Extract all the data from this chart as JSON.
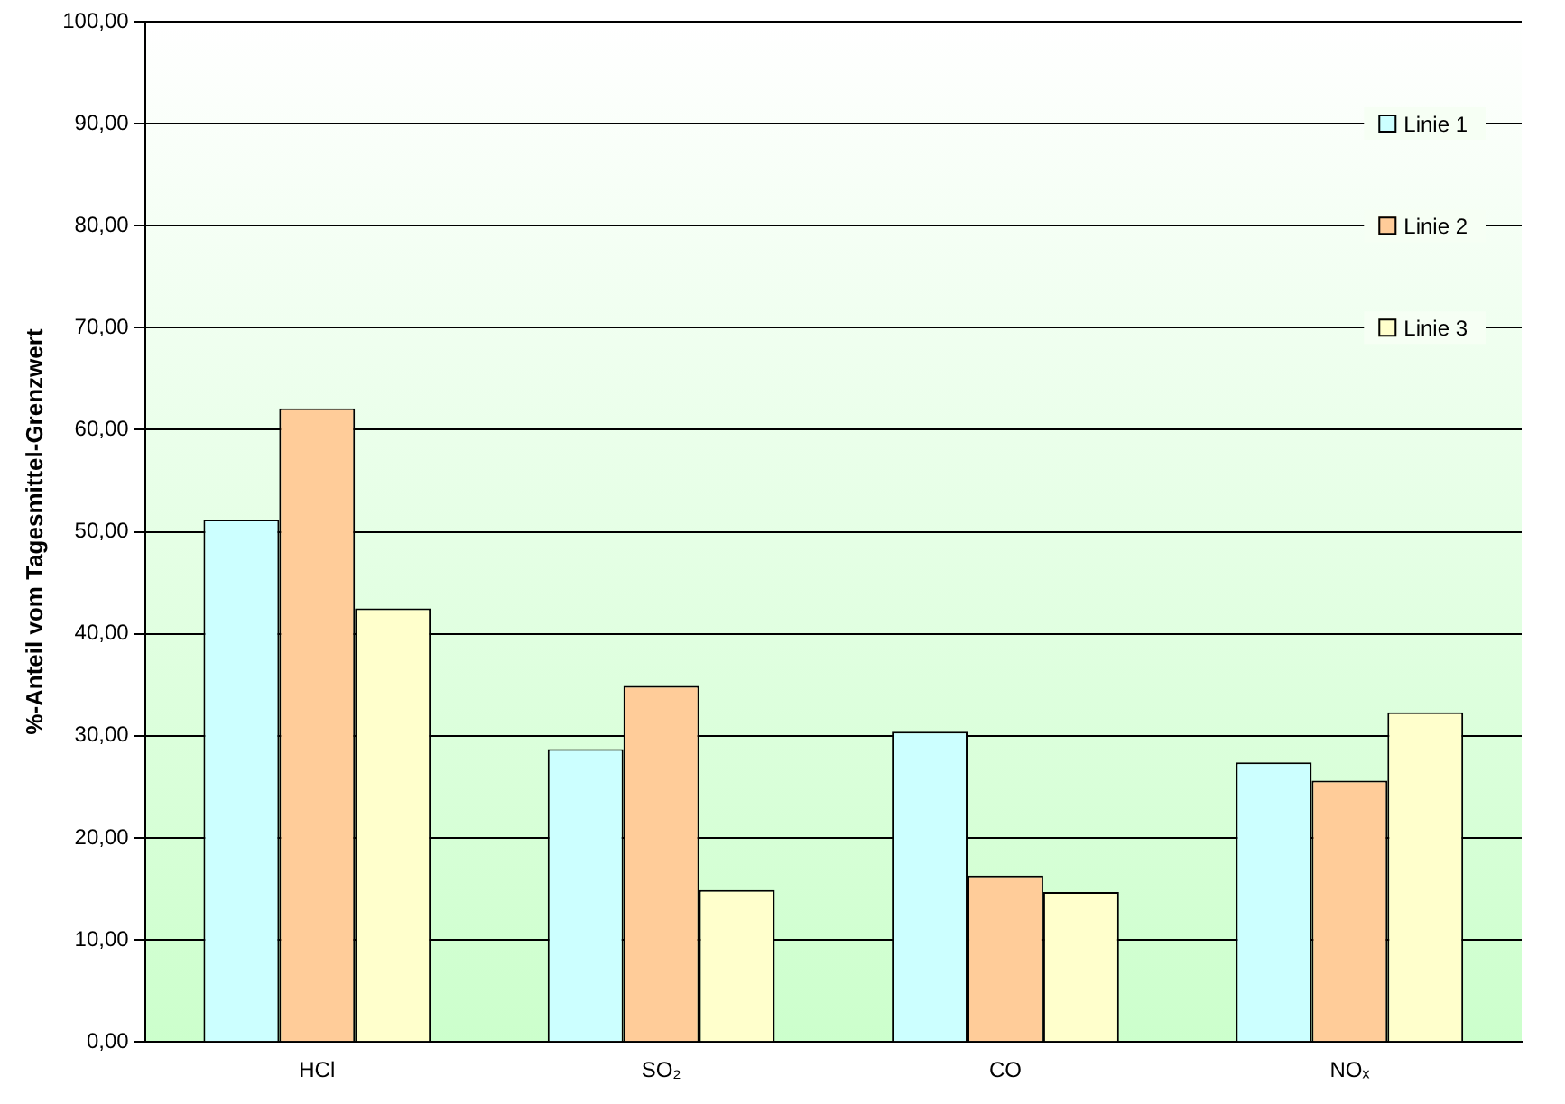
{
  "chart_data": {
    "type": "bar",
    "ylabel": "%-Anteil vom Tagesmittel-Grenzwert",
    "categories": [
      "HCl",
      "SO₂",
      "CO",
      "NOₓ"
    ],
    "series": [
      {
        "name": "Linie 1",
        "color": "#ccffff",
        "values": [
          51.2,
          28.7,
          30.4,
          27.4
        ]
      },
      {
        "name": "Linie 2",
        "color": "#ffcc99",
        "values": [
          62.1,
          34.9,
          16.3,
          25.6
        ]
      },
      {
        "name": "Linie 3",
        "color": "#ffffcc",
        "values": [
          42.5,
          14.9,
          14.7,
          32.3
        ]
      }
    ],
    "ylim": [
      0,
      100
    ],
    "yticks": [
      {
        "value": 0,
        "label": "0,00"
      },
      {
        "value": 10,
        "label": "10,00"
      },
      {
        "value": 20,
        "label": "20,00"
      },
      {
        "value": 30,
        "label": "30,00"
      },
      {
        "value": 40,
        "label": "40,00"
      },
      {
        "value": 50,
        "label": "50,00"
      },
      {
        "value": 60,
        "label": "60,00"
      },
      {
        "value": 70,
        "label": "70,00"
      },
      {
        "value": 80,
        "label": "80,00"
      },
      {
        "value": 90,
        "label": "90,00"
      },
      {
        "value": 100,
        "label": "100,00"
      }
    ],
    "grid": "y",
    "legend": "top right"
  }
}
